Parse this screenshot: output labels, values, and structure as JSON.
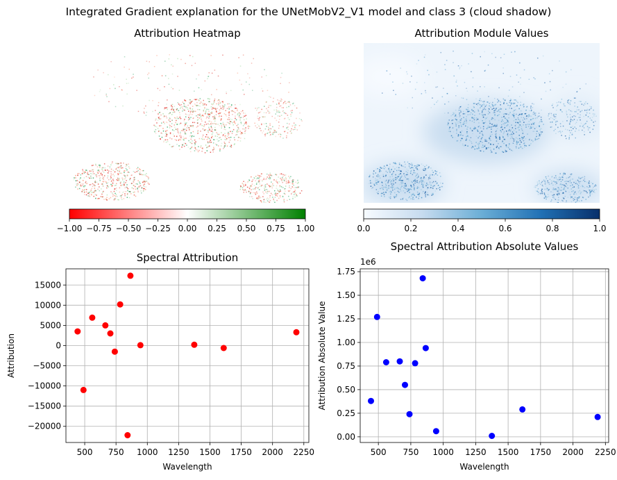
{
  "figure": {
    "suptitle": "Integrated Gradient explanation for the UNetMobV2_V1 model and class 3 (cloud shadow)"
  },
  "heatmap": {
    "title": "Attribution Heatmap",
    "colormap": [
      "#ff0000",
      "#ffffff",
      "#008000"
    ],
    "colorbar_ticks": [
      "−1.00",
      "−0.75",
      "−0.50",
      "−0.25",
      "0.00",
      "0.25",
      "0.50",
      "0.75",
      "1.00"
    ]
  },
  "module": {
    "title": "Attribution Module Values",
    "colormap": [
      "#f7fbff",
      "#c6dbef",
      "#6baed6",
      "#2171b5",
      "#08306b"
    ],
    "colorbar_ticks": [
      "0.0",
      "0.2",
      "0.4",
      "0.6",
      "0.8",
      "1.0"
    ]
  },
  "chart_data": [
    {
      "type": "scatter",
      "title": "Spectral Attribution",
      "xlabel": "Wavelength",
      "ylabel": "Attribution",
      "color": "#ff0000",
      "grid": true,
      "xlim": [
        350,
        2290
      ],
      "ylim": [
        -24000,
        19000
      ],
      "xticks": [
        500,
        750,
        1000,
        1250,
        1500,
        1750,
        2000,
        2250
      ],
      "yticks": [
        -20000,
        -15000,
        -10000,
        -5000,
        0,
        5000,
        10000,
        15000
      ],
      "ytick_labels": [
        "−20000",
        "−15000",
        "−10000",
        "−5000",
        "0",
        "5000",
        "10000",
        "15000"
      ],
      "points": [
        [
          443,
          3500
        ],
        [
          490,
          -11000
        ],
        [
          560,
          6900
        ],
        [
          665,
          5000
        ],
        [
          705,
          3000
        ],
        [
          740,
          -1500
        ],
        [
          783,
          10200
        ],
        [
          842,
          -22200
        ],
        [
          865,
          17300
        ],
        [
          945,
          100
        ],
        [
          1375,
          200
        ],
        [
          1610,
          -600
        ],
        [
          2190,
          3300
        ]
      ]
    },
    {
      "type": "scatter",
      "title": "Spectral Attribution Absolute Values",
      "xlabel": "Wavelength",
      "ylabel": "Attribution Absolute Value",
      "offset_label": "1e6",
      "color": "#0000ff",
      "grid": true,
      "xlim": [
        360,
        2275
      ],
      "ylim": [
        -0.06,
        1.78
      ],
      "xticks": [
        500,
        750,
        1000,
        1250,
        1500,
        1750,
        2000,
        2250
      ],
      "yticks": [
        0.0,
        0.25,
        0.5,
        0.75,
        1.0,
        1.25,
        1.5,
        1.75
      ],
      "ytick_labels": [
        "0.00",
        "0.25",
        "0.50",
        "0.75",
        "1.00",
        "1.25",
        "1.50",
        "1.75"
      ],
      "points": [
        [
          443,
          0.38
        ],
        [
          490,
          1.27
        ],
        [
          560,
          0.79
        ],
        [
          665,
          0.8
        ],
        [
          705,
          0.55
        ],
        [
          740,
          0.24
        ],
        [
          783,
          0.78
        ],
        [
          842,
          1.68
        ],
        [
          865,
          0.94
        ],
        [
          945,
          0.06
        ],
        [
          1375,
          0.01
        ],
        [
          1610,
          0.29
        ],
        [
          2190,
          0.21
        ]
      ]
    }
  ]
}
